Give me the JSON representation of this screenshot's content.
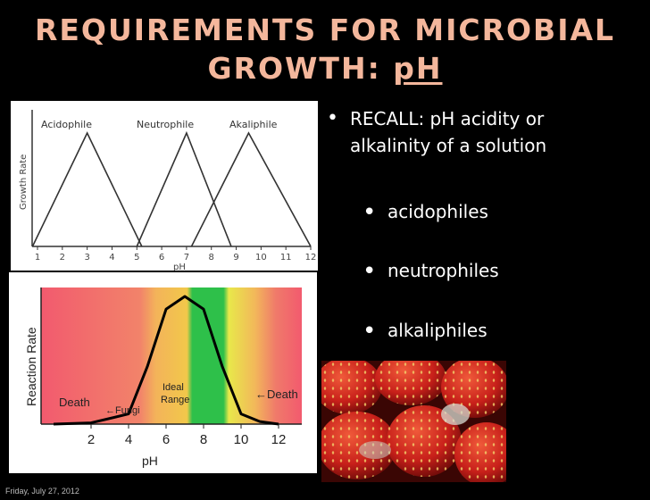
{
  "slide": {
    "title_line1": "REQUIREMENTS FOR MICROBIAL",
    "title_line2_prefix": "GROWTH: ",
    "title_line2_underlined": "pH",
    "bullets": {
      "recall_line1": "RECALL: pH acidity or",
      "recall_line2": "alkalinity of a solution",
      "sub": [
        "acidophiles",
        "neutrophiles",
        "alkaliphiles"
      ]
    },
    "footer": "Friday, July 27, 2012"
  },
  "chart_data": [
    {
      "type": "line",
      "title": "",
      "xlabel": "pH",
      "ylabel": "Growth Rate",
      "x_ticks": [
        "1",
        "2",
        "3",
        "4",
        "5",
        "6",
        "7",
        "8",
        "9",
        "10",
        "11",
        "12"
      ],
      "xlim": [
        1,
        12
      ],
      "series": [
        {
          "name": "Acidophile",
          "x": [
            0.8,
            3,
            5.2
          ],
          "y": [
            0,
            1,
            0
          ]
        },
        {
          "name": "Neutrophile",
          "x": [
            5,
            7,
            8.8
          ],
          "y": [
            0,
            1,
            0
          ]
        },
        {
          "name": "Akaliphile",
          "x": [
            7.2,
            9.5,
            12
          ],
          "y": [
            0,
            1,
            0
          ]
        }
      ]
    },
    {
      "type": "line",
      "title": "",
      "xlabel": "pH",
      "ylabel": "Reaction Rate",
      "x_ticks": [
        "2",
        "4",
        "6",
        "8",
        "10",
        "12"
      ],
      "xlim": [
        0,
        12
      ],
      "series": [
        {
          "name": "",
          "x": [
            0,
            2,
            4,
            5,
            6,
            7,
            8,
            9,
            10,
            11,
            12
          ],
          "y": [
            0,
            0.01,
            0.08,
            0.45,
            0.9,
            1,
            0.9,
            0.45,
            0.08,
            0.02,
            0
          ]
        }
      ],
      "annotations": [
        "Death",
        "Fungi",
        "Ideal Range",
        "Death"
      ]
    }
  ],
  "labels": {
    "acidophile": "Acidophile",
    "neutrophile": "Neutrophile",
    "akaliphile": "Akaliphile",
    "growth_rate": "Growth Rate",
    "ph1": "pH",
    "reaction_rate": "Reaction Rate",
    "death_left": "Death",
    "fungi": "Fungi",
    "ideal": "Ideal",
    "range": "Range",
    "death_right": "Death",
    "ph2": "pH"
  },
  "colors": {
    "title": "#f4b79c",
    "background": "#000000"
  }
}
